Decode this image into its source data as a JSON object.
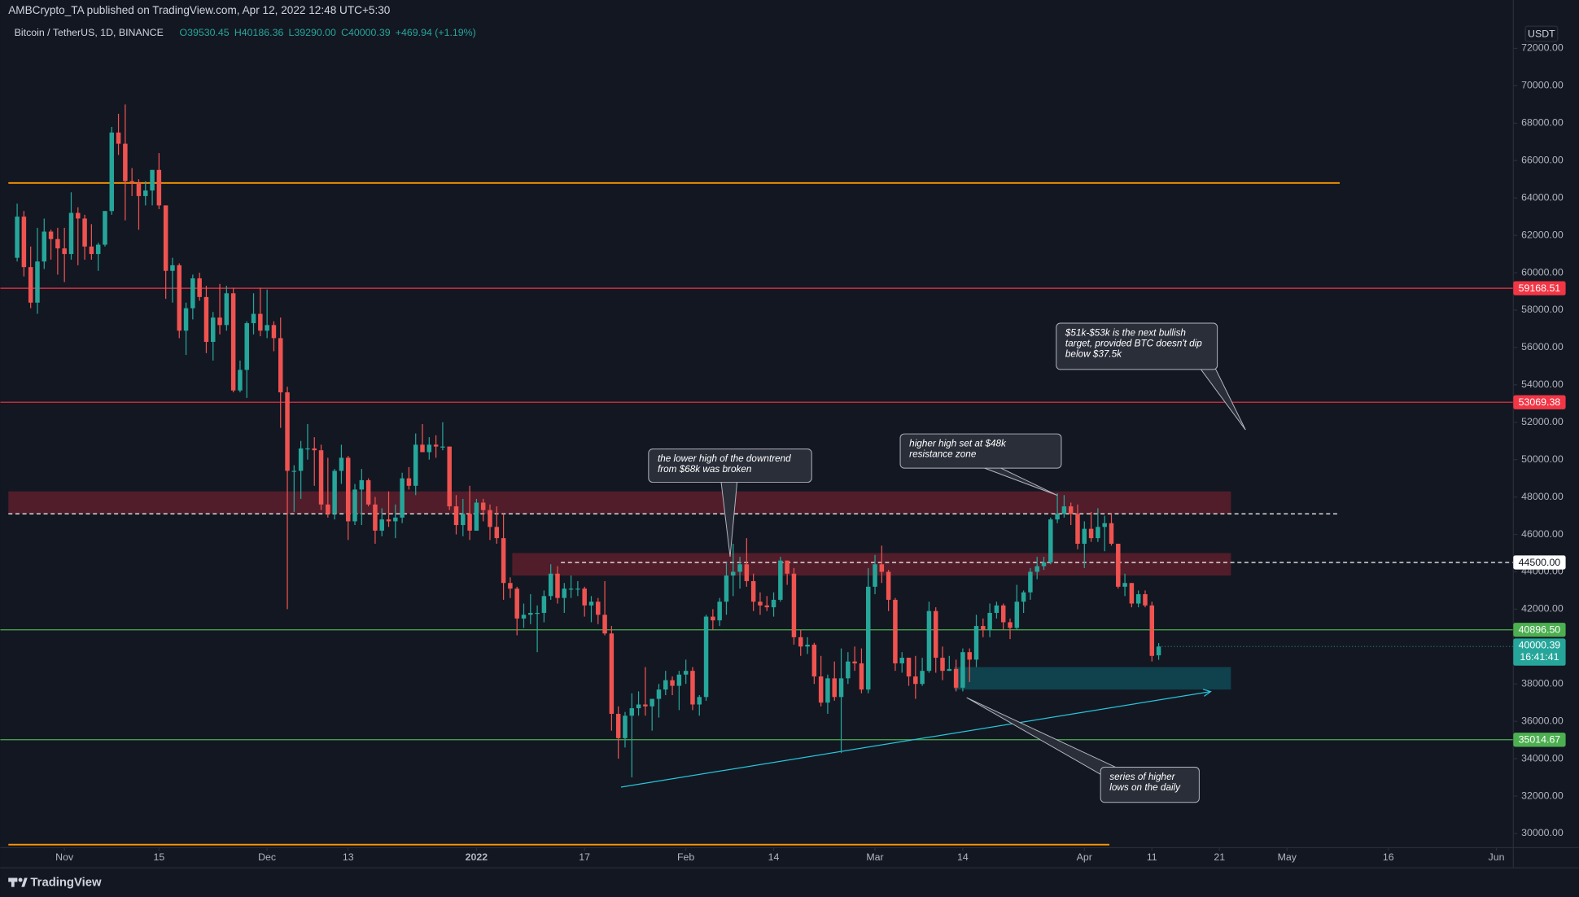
{
  "chart_data": {
    "type": "candlestick",
    "publisher": "AMBCrypto_TA published on TradingView.com, Apr 12, 2022 12:48 UTC+5:30",
    "title": "Bitcoin / TetherUS, 1D, BINANCE",
    "ohlc_text": [
      "O39530.45",
      "H40186.36",
      "L39290.00",
      "C40000.39",
      "+469.94 (+1.19%)"
    ],
    "currency": "USDT",
    "countdown": "16:41:41",
    "brand": "TradingView",
    "up_color": "#26a69a",
    "down_color": "#ef5350",
    "open": [
      60800,
      63000,
      60300,
      58400,
      60600,
      62200,
      61800,
      61300,
      61000,
      63200,
      62900,
      61400,
      61000,
      61500,
      63300,
      67500,
      66900,
      64900,
      64800,
      64100,
      64400,
      65500,
      63600,
      60100,
      60400,
      56900,
      58100,
      59700,
      58700,
      56300,
      57600,
      57200,
      58900,
      53700,
      54800,
      57300,
      57800,
      56900,
      57200,
      56500,
      53600,
      49400,
      49400,
      50600,
      50600,
      50500,
      47600,
      47100,
      49400,
      50100,
      46700,
      48400,
      48900,
      47600,
      46200,
      46800,
      46700,
      46900,
      49000,
      48600,
      50800,
      50400,
      50800,
      50700,
      50700,
      47500,
      46500,
      47100,
      46200,
      47700,
      47300,
      46400,
      45800,
      43400,
      43100,
      41500,
      41700,
      41800,
      41800,
      42700,
      43900,
      42600,
      43100,
      43100,
      43100,
      42200,
      42400,
      41700,
      40700,
      36400,
      35100,
      36300,
      36700,
      36900,
      36800,
      37200,
      37700,
      38200,
      37900,
      38500,
      38700,
      36900,
      37300,
      41600,
      41400,
      42400,
      43800,
      44000,
      44400,
      43500,
      42400,
      42200,
      42100,
      42500,
      44600,
      43900,
      40500,
      40000,
      40100,
      38400,
      37000,
      38300,
      37300,
      38300,
      39200,
      39100,
      37700,
      43200,
      44400,
      44000,
      42500,
      39100,
      39400,
      38400,
      38000,
      38700,
      41900,
      39400,
      38700,
      38800,
      37800,
      39700,
      39300,
      41100,
      40900,
      41800,
      42200,
      41300,
      41000,
      42400,
      42900,
      44000,
      44300,
      44500,
      46800,
      47100,
      47500,
      47100,
      45500,
      46300,
      45800,
      46400,
      46600,
      45500,
      43200,
      43400,
      42300,
      42800,
      42200,
      39530.45
    ],
    "high": [
      63700,
      63300,
      61400,
      62400,
      62900,
      62300,
      62400,
      62400,
      64300,
      63500,
      63100,
      62600,
      61600,
      63300,
      67800,
      68500,
      69000,
      65600,
      65000,
      64900,
      65500,
      66400,
      63600,
      60800,
      60500,
      58400,
      59900,
      60000,
      59300,
      57900,
      59400,
      59300,
      59200,
      55300,
      57400,
      58900,
      59200,
      59100,
      57400,
      57600,
      53900,
      49700,
      51000,
      51900,
      51200,
      50800,
      50100,
      49500,
      50800,
      50200,
      48700,
      49500,
      49000,
      48000,
      47400,
      48300,
      47600,
      49300,
      49600,
      51400,
      51900,
      51200,
      51300,
      52000,
      50700,
      48100,
      47900,
      48600,
      47900,
      47900,
      47600,
      47500,
      47100,
      43700,
      43200,
      42300,
      42800,
      42200,
      43000,
      44400,
      44300,
      43400,
      43800,
      43500,
      43200,
      42700,
      42600,
      43500,
      41100,
      36800,
      36500,
      37500,
      37600,
      38900,
      37200,
      38000,
      38700,
      38400,
      38700,
      39300,
      38900,
      37400,
      41700,
      42000,
      42600,
      44500,
      45500,
      44800,
      45800,
      43900,
      42900,
      42700,
      42900,
      44800,
      44600,
      44200,
      40900,
      40500,
      40200,
      39500,
      38500,
      39200,
      39900,
      39700,
      40000,
      39900,
      44200,
      44900,
      45400,
      44100,
      42600,
      39700,
      39400,
      39500,
      39400,
      42400,
      42100,
      40000,
      39500,
      39300,
      39900,
      39900,
      41700,
      41500,
      42300,
      42400,
      42300,
      41500,
      43300,
      43000,
      44200,
      44800,
      44800,
      46900,
      48200,
      48100,
      47700,
      47600,
      46700,
      47200,
      47400,
      47000,
      47100,
      45500,
      43900,
      43400,
      43000,
      43000,
      42400,
      40186.36
    ],
    "low": [
      60600,
      59800,
      58100,
      57800,
      60200,
      60700,
      59900,
      59500,
      60700,
      60400,
      60700,
      60700,
      60100,
      61400,
      63100,
      66300,
      62800,
      64100,
      62300,
      63600,
      63600,
      63400,
      58600,
      58400,
      56500,
      55600,
      57500,
      58500,
      55700,
      55300,
      56700,
      56900,
      53600,
      53600,
      53300,
      56700,
      56600,
      56500,
      55800,
      51700,
      42000,
      47200,
      47900,
      50000,
      48600,
      47300,
      46900,
      46800,
      48700,
      45700,
      46500,
      46500,
      47500,
      45500,
      45900,
      46400,
      45800,
      46600,
      48400,
      48100,
      50400,
      50000,
      50100,
      50500,
      47300,
      46000,
      45900,
      45700,
      46200,
      46700,
      45700,
      45500,
      42500,
      42600,
      40600,
      41000,
      41200,
      39700,
      41300,
      42500,
      42300,
      41800,
      42600,
      42700,
      41600,
      41300,
      41200,
      40600,
      35500,
      34000,
      34600,
      33000,
      36300,
      36300,
      35500,
      36200,
      37400,
      37400,
      36600,
      38000,
      36600,
      36300,
      37100,
      40900,
      41100,
      41700,
      42700,
      43100,
      43200,
      41900,
      41700,
      41900,
      41600,
      42400,
      43300,
      40100,
      39500,
      39600,
      38000,
      36800,
      36400,
      37100,
      34300,
      38000,
      38700,
      37500,
      37500,
      42800,
      43400,
      41900,
      38700,
      38600,
      37900,
      37200,
      37900,
      38600,
      38600,
      38200,
      38700,
      37600,
      37600,
      38100,
      38900,
      40500,
      40500,
      41500,
      40900,
      40400,
      40900,
      41800,
      42500,
      43600,
      44100,
      44400,
      46600,
      46900,
      46500,
      45200,
      44200,
      45600,
      45600,
      45100,
      45400,
      43100,
      42700,
      42100,
      42100,
      42100,
      39200,
      39290.0
    ],
    "close": [
      63000,
      60300,
      58400,
      60600,
      62200,
      61800,
      61300,
      61000,
      63200,
      62900,
      61400,
      61000,
      61500,
      63300,
      67500,
      66900,
      64900,
      64800,
      64100,
      64400,
      65500,
      63600,
      60100,
      60400,
      56900,
      58100,
      59700,
      58700,
      56300,
      57600,
      57200,
      58900,
      53700,
      54800,
      57300,
      57800,
      56900,
      57200,
      56500,
      53600,
      49400,
      49400,
      50600,
      50600,
      50500,
      47600,
      47100,
      49400,
      50100,
      46700,
      48400,
      48900,
      47600,
      46200,
      46800,
      46700,
      46900,
      49000,
      48600,
      50800,
      50400,
      50800,
      50700,
      50700,
      47500,
      46500,
      47100,
      46200,
      47700,
      47300,
      46400,
      45800,
      43400,
      43100,
      41500,
      41700,
      41800,
      41800,
      42700,
      43900,
      42600,
      43100,
      43100,
      43100,
      42200,
      42400,
      41700,
      40700,
      36400,
      35100,
      36300,
      36700,
      36900,
      36800,
      37200,
      37700,
      38200,
      37900,
      38500,
      38700,
      36900,
      37300,
      41600,
      41400,
      42400,
      43800,
      44000,
      44400,
      43500,
      42400,
      42200,
      42100,
      42500,
      44600,
      43900,
      40500,
      40000,
      40100,
      38400,
      37000,
      38300,
      37300,
      38300,
      39200,
      39100,
      37700,
      43200,
      44400,
      44000,
      42500,
      39100,
      39400,
      38400,
      38000,
      38700,
      41900,
      39400,
      38700,
      38800,
      37800,
      39700,
      39300,
      41100,
      40900,
      41800,
      42200,
      41300,
      41000,
      42400,
      42900,
      44000,
      44300,
      44500,
      46800,
      47100,
      47500,
      47100,
      45500,
      46300,
      45800,
      46400,
      46600,
      45500,
      43200,
      43400,
      42300,
      42800,
      42200,
      39500,
      40000.39
    ],
    "xlim": [
      -2.5,
      221.5
    ],
    "xticks": [
      {
        "value": 7,
        "label": "Nov"
      },
      {
        "value": 21,
        "label": "15"
      },
      {
        "value": 37,
        "label": "Dec"
      },
      {
        "value": 49,
        "label": "13"
      },
      {
        "value": 68,
        "label": "2022"
      },
      {
        "value": 84,
        "label": "17"
      },
      {
        "value": 99,
        "label": "Feb"
      },
      {
        "value": 112,
        "label": "14"
      },
      {
        "value": 127,
        "label": "Mar"
      },
      {
        "value": 140,
        "label": "14"
      },
      {
        "value": 158,
        "label": "Apr"
      },
      {
        "value": 168,
        "label": "11"
      },
      {
        "value": 178,
        "label": "21"
      },
      {
        "value": 188,
        "label": "May"
      },
      {
        "value": 203,
        "label": "16"
      },
      {
        "value": 219,
        "label": "Jun"
      }
    ],
    "ylim": [
      29240,
      74590
    ],
    "yticks": [
      {
        "value": 30000,
        "label": "30000.00"
      },
      {
        "value": 32000,
        "label": "32000.00"
      },
      {
        "value": 34000,
        "label": "34000.00"
      },
      {
        "value": 36000,
        "label": "36000.00"
      },
      {
        "value": 38000,
        "label": "38000.00"
      },
      {
        "value": 40000,
        "label": "40000.00"
      },
      {
        "value": 42000,
        "label": "42000.00"
      },
      {
        "value": 44000,
        "label": "44000.00"
      },
      {
        "value": 46000,
        "label": "46000.00"
      },
      {
        "value": 48000,
        "label": "48000.00"
      },
      {
        "value": 50000,
        "label": "50000.00"
      },
      {
        "value": 52000,
        "label": "52000.00"
      },
      {
        "value": 54000,
        "label": "54000.00"
      },
      {
        "value": 56000,
        "label": "56000.00"
      },
      {
        "value": 58000,
        "label": "58000.00"
      },
      {
        "value": 60000,
        "label": "60000.00"
      },
      {
        "value": 62000,
        "label": "62000.00"
      },
      {
        "value": 64000,
        "label": "64000.00"
      },
      {
        "value": 66000,
        "label": "66000.00"
      },
      {
        "value": 68000,
        "label": "68000.00"
      },
      {
        "value": 70000,
        "label": "70000.00"
      },
      {
        "value": 72000,
        "label": "72000.00"
      }
    ],
    "grid": false,
    "levels": [
      {
        "value": 64800,
        "color": "#ff9800",
        "from": -1.3,
        "to": 195.8
      },
      {
        "value": 59168.51,
        "color": "#f23645",
        "tag": true
      },
      {
        "value": 53069.38,
        "color": "#f23645",
        "tag": true
      },
      {
        "value": 47100,
        "color": "#ffffff",
        "dashed": true,
        "from": -1.3,
        "to": 195.8
      },
      {
        "value": 44500,
        "label": "44500.00",
        "color": "#ffffff",
        "dashed": true,
        "from": 80.5,
        "tag": true
      },
      {
        "value": 40896.5,
        "label": "40896.50",
        "color": "#4caf50",
        "tag": true
      },
      {
        "value": 35014.67,
        "color": "#4caf50",
        "tag": true
      },
      {
        "value": 29400,
        "color": "#ff9800",
        "from": -1.3,
        "to": 161.7
      }
    ],
    "zones": [
      {
        "top": 48300,
        "bottom": 47100,
        "from": -1.3,
        "to": 179.7,
        "color": "#5d1f2c"
      },
      {
        "top": 45000,
        "bottom": 43800,
        "from": 73.3,
        "to": 179.7,
        "color": "#5d1f2c"
      },
      {
        "top": 38900,
        "bottom": 37700,
        "from": 138.7,
        "to": 179.7,
        "color": "#0f4a55"
      }
    ],
    "trendline": {
      "x": [
        89.4,
        176.7
      ],
      "y": [
        32480,
        37590
      ],
      "color": "#26c6da"
    },
    "annotations": [
      {
        "lines": [
          "the lower high of the downtrend",
          "from $68k was broken"
        ]
      },
      {
        "lines": [
          "higher high set at $48k",
          "resistance zone"
        ]
      },
      {
        "lines": [
          "$51k-$53k is the next bullish",
          "target, provided BTC doesn't dip",
          "below $37.5k"
        ]
      },
      {
        "lines": [
          "series of higher",
          "lows on the daily"
        ]
      }
    ]
  }
}
